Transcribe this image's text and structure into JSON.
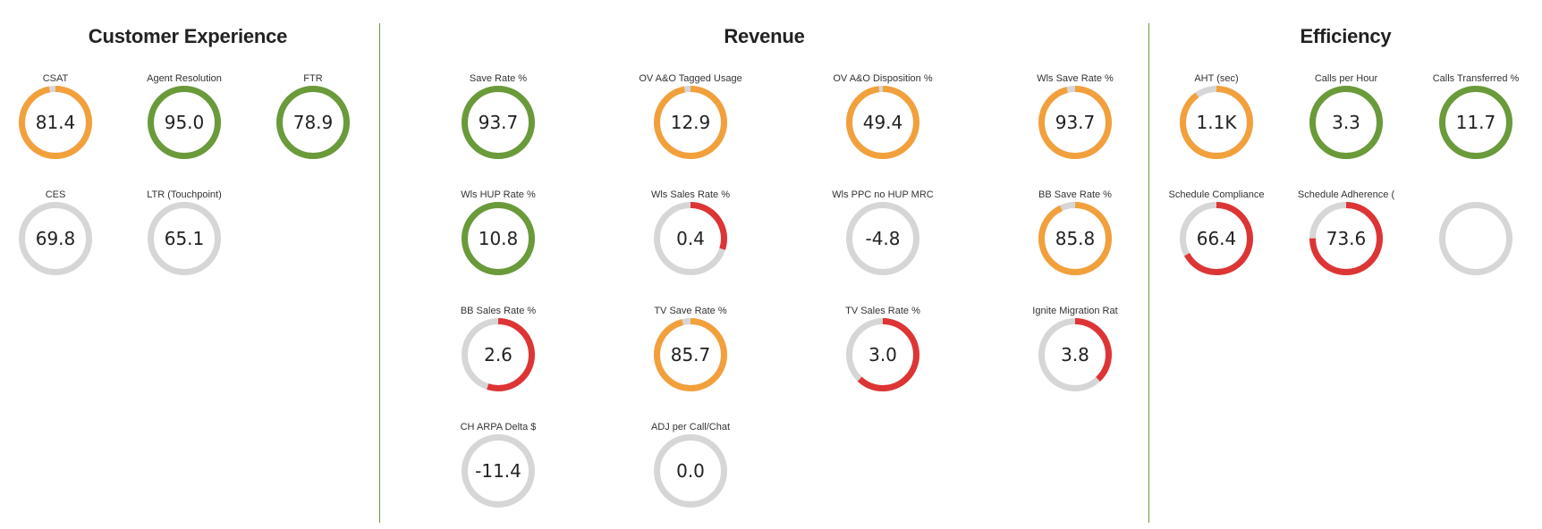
{
  "colors": {
    "green": "#6a9a3a",
    "orange": "#f2a03c",
    "red": "#dd3535",
    "track": "#d6d6d6",
    "divider": "#6a9a3a"
  },
  "sections": [
    {
      "key": "customer_experience",
      "title": "Customer Experience",
      "metrics": [
        {
          "label": "CSAT",
          "value": "81.4",
          "fill": 0.97,
          "color": "orange"
        },
        {
          "label": "Agent Resolution",
          "value": "95.0",
          "fill": 1.0,
          "color": "green"
        },
        {
          "label": "FTR",
          "value": "78.9",
          "fill": 1.0,
          "color": "green"
        },
        {
          "label": "CES",
          "value": "69.8",
          "fill": 0,
          "color": "track"
        },
        {
          "label": "LTR (Touchpoint)",
          "value": "65.1",
          "fill": 0,
          "color": "track"
        }
      ]
    },
    {
      "key": "revenue",
      "title": "Revenue",
      "metrics": [
        {
          "label": "Save Rate %",
          "value": "93.7",
          "fill": 1.0,
          "color": "green"
        },
        {
          "label": "OV A&O Tagged Usage",
          "value": "12.9",
          "fill": 0.97,
          "color": "orange"
        },
        {
          "label": "OV A&O Disposition %",
          "value": "49.4",
          "fill": 0.98,
          "color": "orange"
        },
        {
          "label": "Wls Save Rate %",
          "value": "93.7",
          "fill": 0.96,
          "color": "orange"
        },
        {
          "label": "Wls HUP Rate %",
          "value": "10.8",
          "fill": 1.0,
          "color": "green"
        },
        {
          "label": "Wls Sales Rate %",
          "value": "0.4",
          "fill": 0.3,
          "color": "red"
        },
        {
          "label": "Wls PPC no HUP MRC",
          "value": "-4.8",
          "fill": 0,
          "color": "track"
        },
        {
          "label": "BB Save Rate %",
          "value": "85.8",
          "fill": 0.93,
          "color": "orange"
        },
        {
          "label": "BB Sales Rate %",
          "value": "2.6",
          "fill": 0.55,
          "color": "red"
        },
        {
          "label": "TV Save Rate %",
          "value": "85.7",
          "fill": 0.96,
          "color": "orange"
        },
        {
          "label": "TV Sales Rate %",
          "value": "3.0",
          "fill": 0.62,
          "color": "red"
        },
        {
          "label": "Ignite Migration Rat",
          "value": "3.8",
          "fill": 0.38,
          "color": "red"
        },
        {
          "label": "CH ARPA Delta $",
          "value": "-11.4",
          "fill": 0,
          "color": "track"
        },
        {
          "label": "ADJ per Call/Chat",
          "value": "0.0",
          "fill": 0,
          "color": "track"
        }
      ]
    },
    {
      "key": "efficiency",
      "title": "Efficiency",
      "metrics": [
        {
          "label": "AHT (sec)",
          "value": "1.1K",
          "fill": 0.9,
          "color": "orange"
        },
        {
          "label": "Calls per Hour",
          "value": "3.3",
          "fill": 1.0,
          "color": "green"
        },
        {
          "label": "Calls Transferred %",
          "value": "11.7",
          "fill": 1.0,
          "color": "green"
        },
        {
          "label": "Schedule Compliance",
          "value": "66.4",
          "fill": 0.67,
          "color": "red"
        },
        {
          "label": "Schedule Adherence (",
          "value": "73.6",
          "fill": 0.75,
          "color": "red"
        },
        {
          "label": "",
          "value": "",
          "fill": 0,
          "color": "track"
        }
      ]
    }
  ]
}
